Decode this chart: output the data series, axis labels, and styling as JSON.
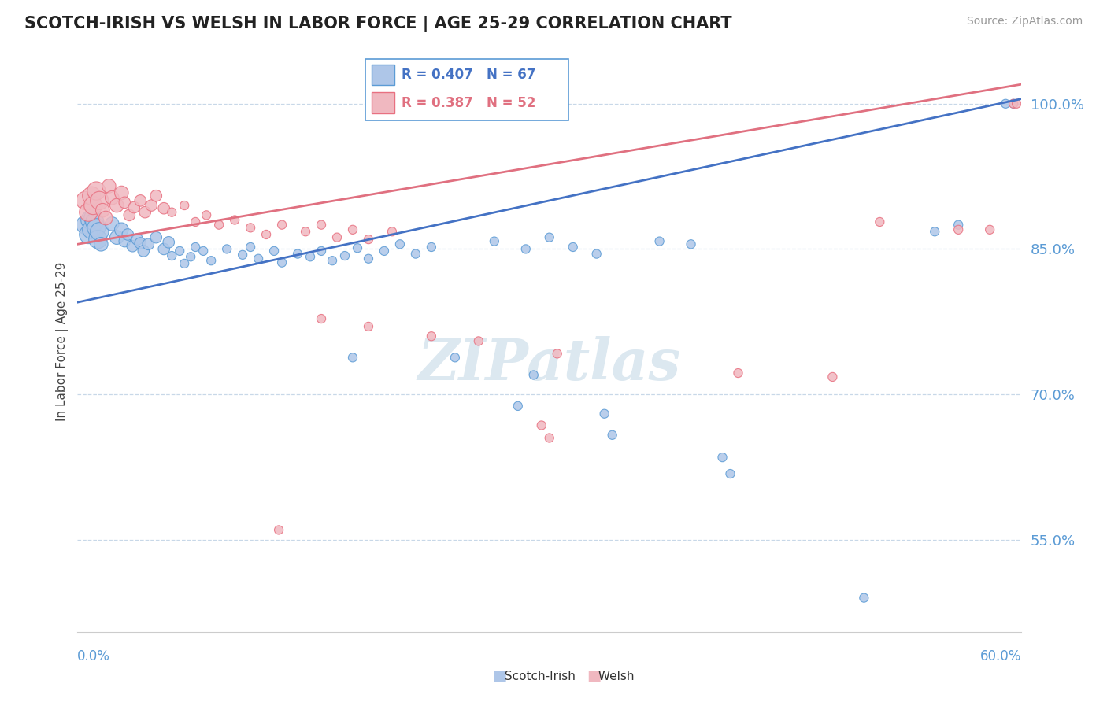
{
  "title": "SCOTCH-IRISH VS WELSH IN LABOR FORCE | AGE 25-29 CORRELATION CHART",
  "source": "Source: ZipAtlas.com",
  "ylabel": "In Labor Force | Age 25-29",
  "xmin": 0.0,
  "xmax": 0.6,
  "ymin": 0.455,
  "ymax": 1.055,
  "yticks": [
    0.55,
    0.7,
    0.85,
    1.0
  ],
  "ytick_labels": [
    "55.0%",
    "70.0%",
    "85.0%",
    "100.0%"
  ],
  "scotch_irish_R": 0.407,
  "scotch_irish_N": 67,
  "welsh_R": 0.387,
  "welsh_N": 52,
  "scotch_irish_color": "#aec6e8",
  "welsh_color": "#f0b8c0",
  "scotch_irish_edge_color": "#5b9bd5",
  "welsh_edge_color": "#e87080",
  "scotch_irish_line_color": "#4472c4",
  "welsh_line_color": "#e07080",
  "legend_R_color_scotch": "#4472c4",
  "legend_R_color_welsh": "#e07080",
  "background_color": "#ffffff",
  "grid_color": "#c8d8e8",
  "title_color": "#222222",
  "axis_label_color": "#5b9bd5",
  "watermark_color": "#dce8f0",
  "si_trend_x0": 0.0,
  "si_trend_y0": 0.795,
  "si_trend_x1": 0.6,
  "si_trend_y1": 1.005,
  "w_trend_x0": 0.0,
  "w_trend_y0": 0.855,
  "w_trend_x1": 0.6,
  "w_trend_y1": 1.02
}
